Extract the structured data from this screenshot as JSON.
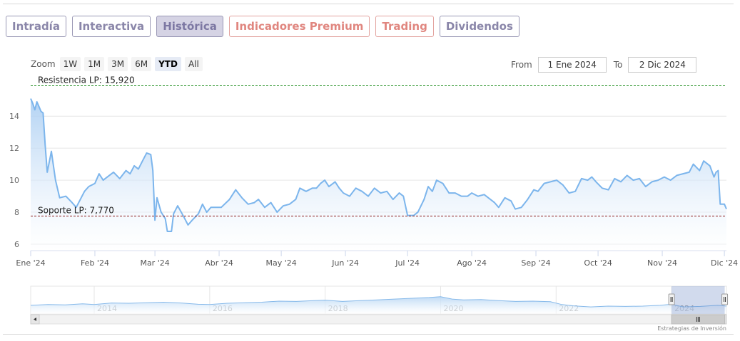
{
  "tabs": [
    {
      "label": "Intradía",
      "active": false,
      "premium": false
    },
    {
      "label": "Interactiva",
      "active": false,
      "premium": false
    },
    {
      "label": "Histórica",
      "active": true,
      "premium": false
    },
    {
      "label": "Indicadores Premium",
      "active": false,
      "premium": true
    },
    {
      "label": "Trading",
      "active": false,
      "premium": true
    },
    {
      "label": "Dividendos",
      "active": false,
      "premium": false
    }
  ],
  "range_selector": {
    "zoom_label": "Zoom",
    "buttons": [
      {
        "label": "1W",
        "active": false
      },
      {
        "label": "1M",
        "active": false
      },
      {
        "label": "3M",
        "active": false
      },
      {
        "label": "6M",
        "active": false
      },
      {
        "label": "YTD",
        "active": true
      },
      {
        "label": "All",
        "active": false
      }
    ]
  },
  "date_range": {
    "from_label": "From",
    "from_value": "1 Ene 2024",
    "to_label": "To",
    "to_value": "2 Dic 2024"
  },
  "watermark": "Estrategias de Inversión",
  "colors": {
    "line": "#7cb5ec",
    "area_top": "#a9cdf2",
    "area_bottom": "#ffffff",
    "resistance": "#1a8a1a",
    "support": "#8b1a1a",
    "grid": "#e6e6e6"
  },
  "chart_data": {
    "type": "area",
    "title": "",
    "xlabel": "",
    "ylabel": "",
    "y_ticks": [
      6,
      8,
      10,
      12,
      14
    ],
    "ylim": [
      5.6,
      16.1
    ],
    "x_tick_labels": [
      "Ene '24",
      "Feb '24",
      "Mar '24",
      "Abr '24",
      "May '24",
      "Jun '24",
      "Jul '24",
      "Ago '24",
      "Sep '24",
      "Oct '24",
      "Nov '24",
      "Dic '24"
    ],
    "x_tick_dates": [
      "2024-01-01",
      "2024-02-01",
      "2024-03-01",
      "2024-04-01",
      "2024-05-01",
      "2024-06-01",
      "2024-07-01",
      "2024-08-01",
      "2024-09-01",
      "2024-10-01",
      "2024-11-01",
      "2024-12-01"
    ],
    "x_range": [
      "2024-01-01",
      "2024-12-02"
    ],
    "grid": true,
    "legend": "none",
    "plot_lines": [
      {
        "label": "Resistencia LP: 15,920",
        "value": 15.92,
        "style": "dashed"
      },
      {
        "label": "Soporte LP: 7,770",
        "value": 7.77,
        "style": "dashed"
      }
    ],
    "series": [
      {
        "points": [
          [
            "2024-01-01",
            15.1
          ],
          [
            "2024-01-02",
            14.8
          ],
          [
            "2024-01-03",
            14.4
          ],
          [
            "2024-01-04",
            14.9
          ],
          [
            "2024-01-05",
            14.6
          ],
          [
            "2024-01-06",
            14.3
          ],
          [
            "2024-01-07",
            14.2
          ],
          [
            "2024-01-08",
            12.2
          ],
          [
            "2024-01-09",
            10.5
          ],
          [
            "2024-01-11",
            11.8
          ],
          [
            "2024-01-13",
            10.0
          ],
          [
            "2024-01-15",
            8.9
          ],
          [
            "2024-01-18",
            9.0
          ],
          [
            "2024-01-21",
            8.6
          ],
          [
            "2024-01-23",
            8.3
          ],
          [
            "2024-01-25",
            8.8
          ],
          [
            "2024-01-27",
            9.3
          ],
          [
            "2024-01-29",
            9.6
          ],
          [
            "2024-02-01",
            9.8
          ],
          [
            "2024-02-03",
            10.4
          ],
          [
            "2024-02-05",
            10.0
          ],
          [
            "2024-02-07",
            10.2
          ],
          [
            "2024-02-10",
            10.5
          ],
          [
            "2024-02-13",
            10.1
          ],
          [
            "2024-02-16",
            10.6
          ],
          [
            "2024-02-18",
            10.4
          ],
          [
            "2024-02-20",
            10.9
          ],
          [
            "2024-02-22",
            10.7
          ],
          [
            "2024-02-24",
            11.2
          ],
          [
            "2024-02-26",
            11.7
          ],
          [
            "2024-02-28",
            11.6
          ],
          [
            "2024-02-29",
            10.6
          ],
          [
            "2024-03-01",
            7.5
          ],
          [
            "2024-03-02",
            8.9
          ],
          [
            "2024-03-04",
            8.0
          ],
          [
            "2024-03-06",
            7.6
          ],
          [
            "2024-03-07",
            6.8
          ],
          [
            "2024-03-09",
            6.8
          ],
          [
            "2024-03-10",
            7.9
          ],
          [
            "2024-03-12",
            8.4
          ],
          [
            "2024-03-15",
            7.7
          ],
          [
            "2024-03-17",
            7.2
          ],
          [
            "2024-03-19",
            7.5
          ],
          [
            "2024-03-22",
            7.9
          ],
          [
            "2024-03-24",
            8.5
          ],
          [
            "2024-03-26",
            8.0
          ],
          [
            "2024-03-28",
            8.3
          ],
          [
            "2024-04-02",
            8.3
          ],
          [
            "2024-04-06",
            8.8
          ],
          [
            "2024-04-09",
            9.4
          ],
          [
            "2024-04-12",
            8.9
          ],
          [
            "2024-04-15",
            8.5
          ],
          [
            "2024-04-18",
            8.6
          ],
          [
            "2024-04-20",
            8.8
          ],
          [
            "2024-04-23",
            8.3
          ],
          [
            "2024-04-26",
            8.6
          ],
          [
            "2024-04-29",
            8.0
          ],
          [
            "2024-05-02",
            8.4
          ],
          [
            "2024-05-05",
            8.5
          ],
          [
            "2024-05-08",
            8.8
          ],
          [
            "2024-05-10",
            9.5
          ],
          [
            "2024-05-13",
            9.3
          ],
          [
            "2024-05-16",
            9.5
          ],
          [
            "2024-05-18",
            9.5
          ],
          [
            "2024-05-20",
            9.8
          ],
          [
            "2024-05-22",
            10.0
          ],
          [
            "2024-05-24",
            9.6
          ],
          [
            "2024-05-27",
            9.9
          ],
          [
            "2024-05-29",
            9.5
          ],
          [
            "2024-05-31",
            9.2
          ],
          [
            "2024-06-03",
            9.0
          ],
          [
            "2024-06-06",
            9.5
          ],
          [
            "2024-06-09",
            9.3
          ],
          [
            "2024-06-12",
            9.0
          ],
          [
            "2024-06-15",
            9.5
          ],
          [
            "2024-06-18",
            9.2
          ],
          [
            "2024-06-21",
            9.3
          ],
          [
            "2024-06-24",
            8.8
          ],
          [
            "2024-06-27",
            9.2
          ],
          [
            "2024-06-29",
            9.0
          ],
          [
            "2024-07-01",
            7.8
          ],
          [
            "2024-07-04",
            7.8
          ],
          [
            "2024-07-06",
            8.0
          ],
          [
            "2024-07-09",
            8.8
          ],
          [
            "2024-07-11",
            9.6
          ],
          [
            "2024-07-13",
            9.3
          ],
          [
            "2024-07-15",
            10.0
          ],
          [
            "2024-07-18",
            9.8
          ],
          [
            "2024-07-21",
            9.2
          ],
          [
            "2024-07-24",
            9.2
          ],
          [
            "2024-07-27",
            9.0
          ],
          [
            "2024-07-30",
            9.0
          ],
          [
            "2024-08-01",
            9.2
          ],
          [
            "2024-08-04",
            9.0
          ],
          [
            "2024-08-07",
            9.1
          ],
          [
            "2024-08-10",
            8.8
          ],
          [
            "2024-08-12",
            8.6
          ],
          [
            "2024-08-14",
            8.3
          ],
          [
            "2024-08-17",
            8.9
          ],
          [
            "2024-08-20",
            8.7
          ],
          [
            "2024-08-22",
            8.2
          ],
          [
            "2024-08-25",
            8.3
          ],
          [
            "2024-08-28",
            8.8
          ],
          [
            "2024-08-31",
            9.4
          ],
          [
            "2024-09-02",
            9.3
          ],
          [
            "2024-09-05",
            9.8
          ],
          [
            "2024-09-08",
            9.9
          ],
          [
            "2024-09-11",
            10.0
          ],
          [
            "2024-09-14",
            9.7
          ],
          [
            "2024-09-17",
            9.2
          ],
          [
            "2024-09-20",
            9.3
          ],
          [
            "2024-09-23",
            10.1
          ],
          [
            "2024-09-26",
            10.0
          ],
          [
            "2024-09-28",
            10.2
          ],
          [
            "2024-09-30",
            9.9
          ],
          [
            "2024-10-03",
            9.5
          ],
          [
            "2024-10-06",
            9.4
          ],
          [
            "2024-10-09",
            10.1
          ],
          [
            "2024-10-12",
            9.9
          ],
          [
            "2024-10-15",
            10.3
          ],
          [
            "2024-10-18",
            10.0
          ],
          [
            "2024-10-21",
            10.1
          ],
          [
            "2024-10-24",
            9.6
          ],
          [
            "2024-10-27",
            9.9
          ],
          [
            "2024-10-30",
            10.0
          ],
          [
            "2024-11-02",
            10.2
          ],
          [
            "2024-11-05",
            10.0
          ],
          [
            "2024-11-08",
            10.3
          ],
          [
            "2024-11-11",
            10.4
          ],
          [
            "2024-11-14",
            10.5
          ],
          [
            "2024-11-16",
            11.0
          ],
          [
            "2024-11-19",
            10.6
          ],
          [
            "2024-11-21",
            11.2
          ],
          [
            "2024-11-24",
            10.9
          ],
          [
            "2024-11-26",
            10.2
          ],
          [
            "2024-11-27",
            10.5
          ],
          [
            "2024-11-28",
            10.6
          ],
          [
            "2024-11-29",
            8.5
          ],
          [
            "2024-12-01",
            8.5
          ],
          [
            "2024-12-02",
            8.2
          ]
        ]
      }
    ],
    "navigator": {
      "year_labels": [
        "2014",
        "2016",
        "2018",
        "2020",
        "2022",
        "2024"
      ],
      "year_positions": [
        2014,
        2016,
        2018,
        2020,
        2022,
        2024
      ],
      "range": [
        2012.9,
        2024.95
      ],
      "selected": [
        2024.0,
        2024.92
      ],
      "values": [
        [
          2012.9,
          0.55
        ],
        [
          2013.2,
          0.6
        ],
        [
          2013.5,
          0.58
        ],
        [
          2013.8,
          0.65
        ],
        [
          2014.0,
          0.6
        ],
        [
          2014.3,
          0.7
        ],
        [
          2014.6,
          0.68
        ],
        [
          2014.9,
          0.72
        ],
        [
          2015.2,
          0.75
        ],
        [
          2015.5,
          0.7
        ],
        [
          2015.8,
          0.62
        ],
        [
          2016.0,
          0.6
        ],
        [
          2016.3,
          0.68
        ],
        [
          2016.6,
          0.72
        ],
        [
          2016.9,
          0.75
        ],
        [
          2017.2,
          0.82
        ],
        [
          2017.5,
          0.8
        ],
        [
          2017.8,
          0.85
        ],
        [
          2018.0,
          0.88
        ],
        [
          2018.3,
          0.8
        ],
        [
          2018.6,
          0.85
        ],
        [
          2018.9,
          0.9
        ],
        [
          2019.2,
          0.95
        ],
        [
          2019.5,
          1.0
        ],
        [
          2019.8,
          1.05
        ],
        [
          2020.0,
          1.1
        ],
        [
          2020.2,
          0.95
        ],
        [
          2020.4,
          0.9
        ],
        [
          2020.7,
          0.92
        ],
        [
          2021.0,
          0.85
        ],
        [
          2021.3,
          0.8
        ],
        [
          2021.6,
          0.82
        ],
        [
          2021.9,
          0.78
        ],
        [
          2022.1,
          0.6
        ],
        [
          2022.3,
          0.52
        ],
        [
          2022.6,
          0.45
        ],
        [
          2022.9,
          0.5
        ],
        [
          2023.2,
          0.48
        ],
        [
          2023.5,
          0.5
        ],
        [
          2023.8,
          0.55
        ],
        [
          2024.0,
          0.62
        ],
        [
          2024.2,
          0.45
        ],
        [
          2024.5,
          0.48
        ],
        [
          2024.8,
          0.55
        ],
        [
          2024.95,
          0.5
        ]
      ]
    }
  }
}
